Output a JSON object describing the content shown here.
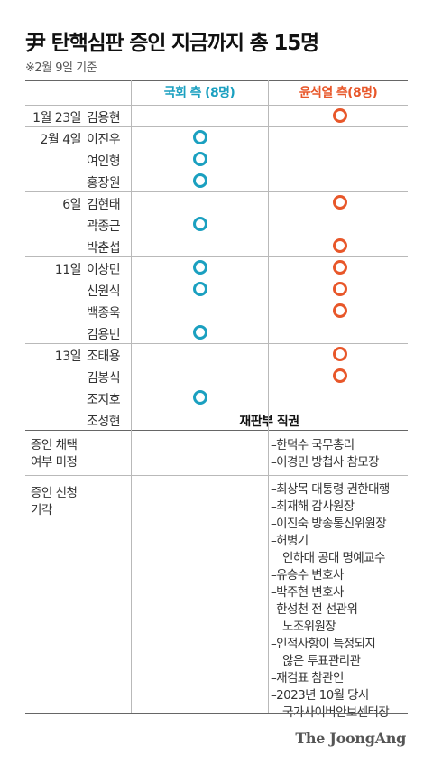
{
  "title": "尹 탄핵심판 증인 지금까지 총 15명",
  "note": "※2월 9일 기준",
  "columns": {
    "national_assembly": "국회 측 (8명)",
    "yoon": "윤석열 측(8명)"
  },
  "colors": {
    "national_assembly": "#1ba0c0",
    "yoon": "#e8572a"
  },
  "witnesses": [
    {
      "date": "1월 23일",
      "name": "김용현",
      "national_assembly": false,
      "yoon": true
    },
    {
      "date": "2월 4일",
      "name": "이진우",
      "national_assembly": true,
      "yoon": false
    },
    {
      "date": "",
      "name": "여인형",
      "national_assembly": true,
      "yoon": false
    },
    {
      "date": "",
      "name": "홍장원",
      "national_assembly": true,
      "yoon": false
    },
    {
      "date": "6일",
      "name": "김현태",
      "national_assembly": false,
      "yoon": true
    },
    {
      "date": "",
      "name": "곽종근",
      "national_assembly": true,
      "yoon": false
    },
    {
      "date": "",
      "name": "박춘섭",
      "national_assembly": false,
      "yoon": true
    },
    {
      "date": "11일",
      "name": "이상민",
      "national_assembly": true,
      "yoon": true
    },
    {
      "date": "",
      "name": "신원식",
      "national_assembly": true,
      "yoon": true
    },
    {
      "date": "",
      "name": "백종욱",
      "national_assembly": false,
      "yoon": true
    },
    {
      "date": "",
      "name": "김용빈",
      "national_assembly": true,
      "yoon": false
    },
    {
      "date": "13일",
      "name": "조태용",
      "national_assembly": false,
      "yoon": true
    },
    {
      "date": "",
      "name": "김봉식",
      "national_assembly": false,
      "yoon": true
    },
    {
      "date": "",
      "name": "조지호",
      "national_assembly": true,
      "yoon": false
    },
    {
      "date": "",
      "name": "조성현",
      "court_ex_officio": "재판부 직권"
    }
  ],
  "undecided": {
    "label_line1": "증인 채택",
    "label_line2": "여부 미정",
    "yoon_items": [
      "–한덕수 국무총리",
      "–이경민 방첩사 참모장"
    ]
  },
  "rejected": {
    "label_line1": "증인 신청",
    "label_line2": "기각",
    "yoon_items": [
      "–최상목 대통령 권한대행",
      "–최재해 감사원장",
      "–이진숙 방송통신위원장",
      "–허병기",
      "  인하대 공대 명예교수",
      "–유승수 변호사",
      "–박주현 변호사",
      "–한성천 전 선관위",
      "  노조위원장",
      "–인적사항이 특정되지",
      "  않은 투표관리관",
      "–재검표 참관인",
      "–2023년 10월 당시",
      "  국가사이버안보센터장"
    ]
  },
  "source": "The JoongAng"
}
